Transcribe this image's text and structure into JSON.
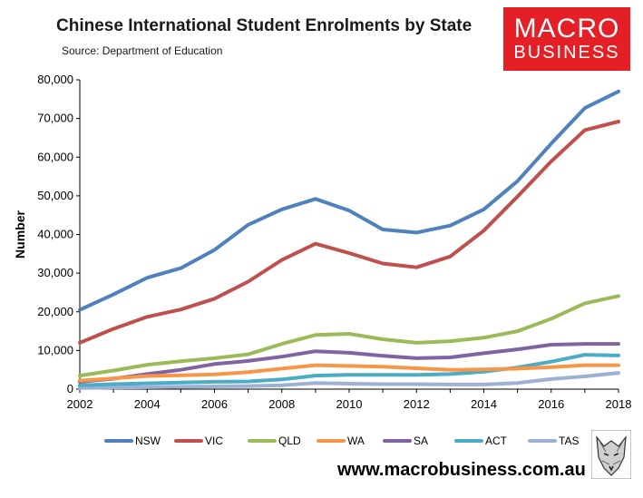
{
  "header": {
    "title": "Chinese International Student Enrolments by State",
    "source": "Source: Department of Education"
  },
  "brand": {
    "line1": "MACRO",
    "line2": "BUSINESS",
    "url": "www.macrobusiness.com.au",
    "color": "#e41f26"
  },
  "chart_data": {
    "type": "line",
    "title": "Chinese International Student Enrolments by State",
    "subtitle": "Source: Department of Education",
    "xlabel": "",
    "ylabel": "Number",
    "x": [
      2002,
      2003,
      2004,
      2005,
      2006,
      2007,
      2008,
      2009,
      2010,
      2011,
      2012,
      2013,
      2014,
      2015,
      2016,
      2017,
      2018
    ],
    "x_ticks": [
      2002,
      2004,
      2006,
      2008,
      2010,
      2012,
      2014,
      2016,
      2018
    ],
    "ylim": [
      0,
      80000
    ],
    "y_ticks": [
      "0",
      "10,000",
      "20,000",
      "30,000",
      "40,000",
      "50,000",
      "60,000",
      "70,000",
      "80,000"
    ],
    "grid": false,
    "legend_position": "bottom",
    "series": [
      {
        "name": "NSW",
        "color": "#4f81bd",
        "values": [
          20500,
          24500,
          28800,
          31300,
          36000,
          42500,
          46500,
          49200,
          46200,
          41300,
          40500,
          42300,
          46500,
          53800,
          63500,
          72700,
          77000
        ]
      },
      {
        "name": "VIC",
        "color": "#c0504d",
        "values": [
          12000,
          15600,
          18700,
          20600,
          23400,
          27800,
          33400,
          37600,
          35200,
          32500,
          31500,
          34300,
          41000,
          49800,
          58900,
          67000,
          69200
        ]
      },
      {
        "name": "QLD",
        "color": "#9bbb59",
        "values": [
          3500,
          4800,
          6300,
          7200,
          8000,
          9000,
          11700,
          14000,
          14300,
          12900,
          12000,
          12400,
          13300,
          15000,
          18200,
          22200,
          24100
        ]
      },
      {
        "name": "WA",
        "color": "#f79646",
        "values": [
          2200,
          2800,
          3400,
          3600,
          3800,
          4400,
          5300,
          6200,
          6000,
          5800,
          5400,
          5000,
          5100,
          5300,
          5700,
          6200,
          6200
        ]
      },
      {
        "name": "SA",
        "color": "#8064a2",
        "values": [
          1900,
          2700,
          3900,
          5000,
          6500,
          7300,
          8400,
          9800,
          9400,
          8600,
          8000,
          8200,
          9300,
          10300,
          11500,
          11700,
          11700
        ]
      },
      {
        "name": "ACT",
        "color": "#4bacc6",
        "values": [
          1000,
          1300,
          1500,
          1700,
          1900,
          2000,
          2500,
          3500,
          3700,
          3700,
          3700,
          3900,
          4500,
          5600,
          7100,
          8900,
          8700
        ]
      },
      {
        "name": "TAS",
        "color": "#9cb1d4",
        "values": [
          300,
          400,
          500,
          600,
          700,
          800,
          1000,
          1600,
          1400,
          1300,
          1300,
          1200,
          1200,
          1600,
          2600,
          3300,
          4200
        ]
      }
    ]
  }
}
